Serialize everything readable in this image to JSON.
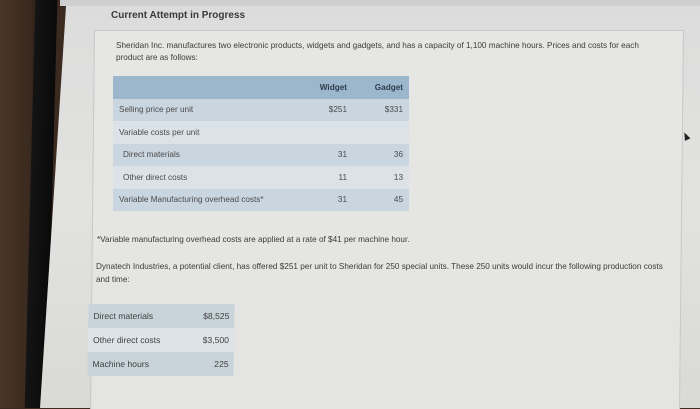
{
  "header": {
    "section_title": "Current Attempt in Progress"
  },
  "problem": {
    "company": "Sheridan Inc.",
    "intro_rest": " manufactures two electronic products, widgets and gadgets, and has a capacity of 1,100 machine hours. Prices and costs for each product are as follows:"
  },
  "price_table": {
    "columns": [
      "",
      "Widget",
      "Gadget"
    ],
    "rows": [
      {
        "label": "Selling price per unit",
        "widget": "$251",
        "gadget": "$331"
      },
      {
        "label": "Variable costs per unit",
        "widget": "",
        "gadget": ""
      },
      {
        "label": "Direct materials",
        "widget": "31",
        "gadget": "36"
      },
      {
        "label": "Other direct costs",
        "widget": "11",
        "gadget": "13"
      },
      {
        "label": "Variable Manufacturing overhead costs*",
        "widget": "31",
        "gadget": "45"
      }
    ]
  },
  "footnote": "*Variable manufacturing overhead costs are applied at a rate of $41 per machine hour.",
  "offer_text": "Dynatech Industries, a potential client, has offered $251 per unit to Sheridan for 250 special units. These 250 units would incur the following production costs and time:",
  "special_order_table": {
    "rows": [
      {
        "label": "Direct materials",
        "value": "$8,525"
      },
      {
        "label": "Other direct costs",
        "value": "$3,500"
      },
      {
        "label": "Machine hours",
        "value": "225"
      }
    ]
  },
  "colors": {
    "table_header": "#9cb6cc",
    "row_dark": "#c9d6e0",
    "row_light": "#dbe3e9"
  }
}
